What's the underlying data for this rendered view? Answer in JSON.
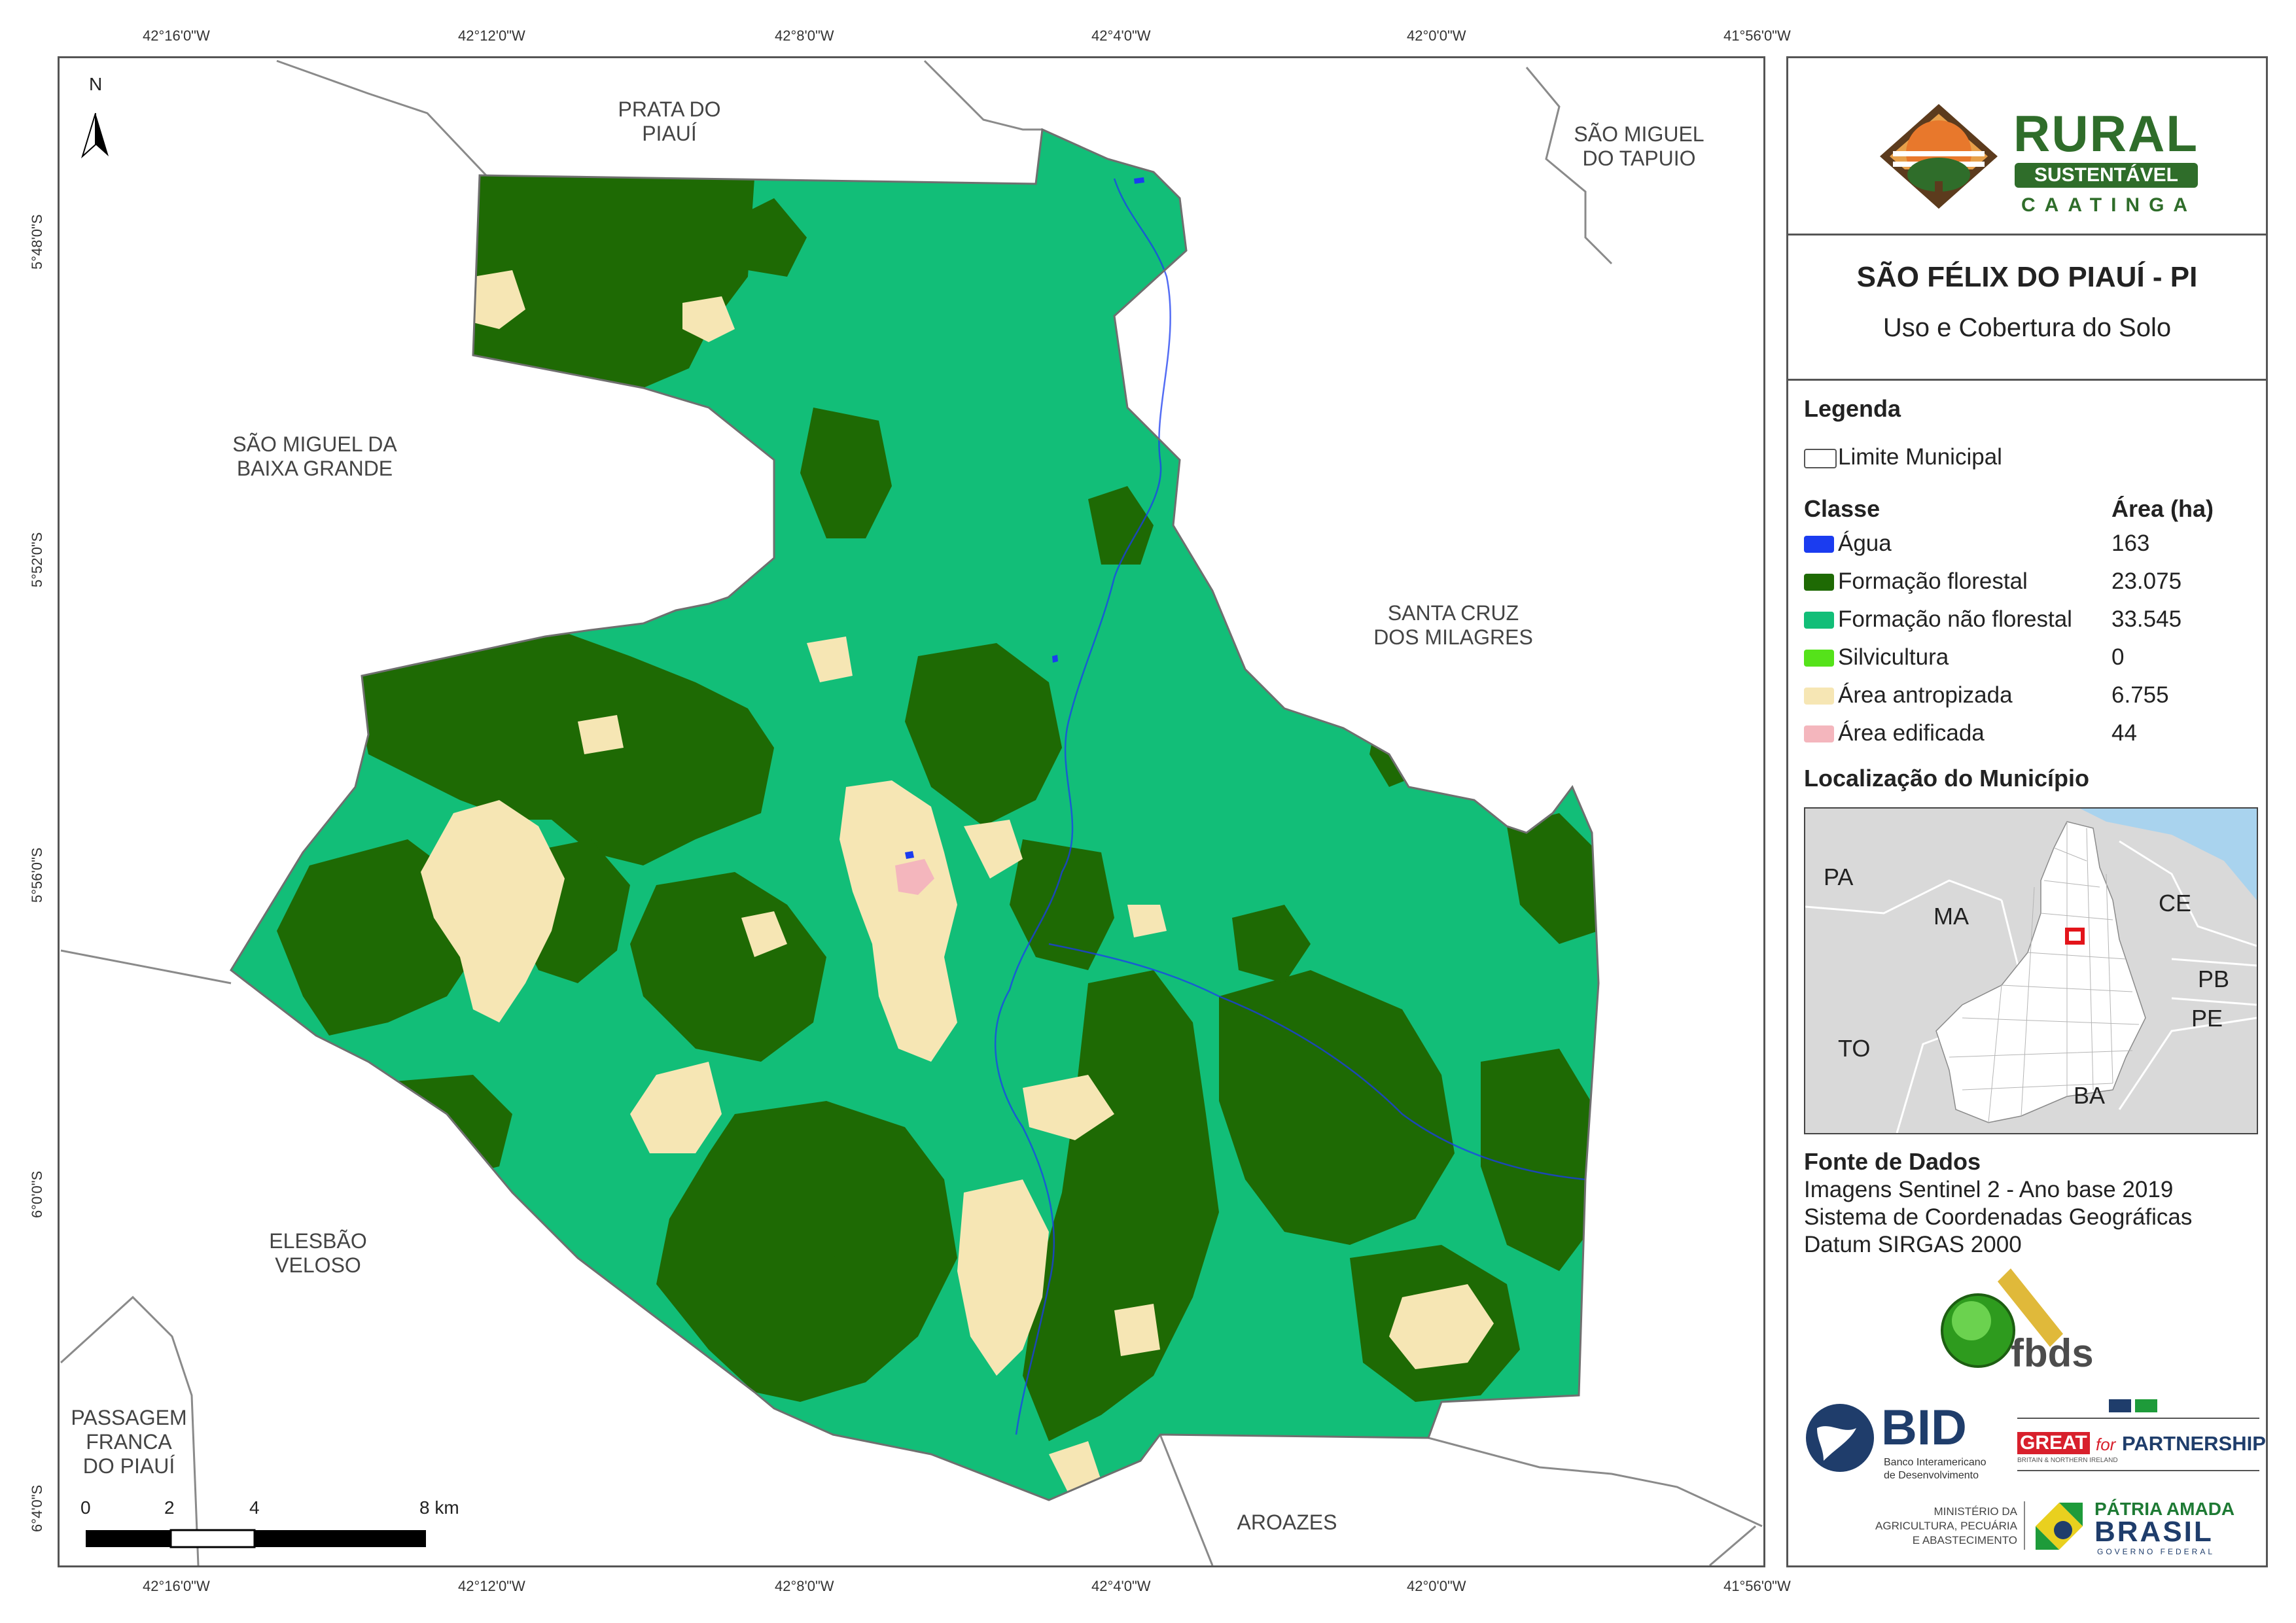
{
  "map": {
    "coords_top": [
      "42°16'0\"W",
      "42°12'0\"W",
      "42°8'0\"W",
      "42°4'0\"W",
      "42°0'0\"W",
      "41°56'0\"W"
    ],
    "coords_bottom": [
      "42°16'0\"W",
      "42°12'0\"W",
      "42°8'0\"W",
      "42°4'0\"W",
      "42°0'0\"W",
      "41°56'0\"W"
    ],
    "coords_left": [
      "5°48'0\"S",
      "5°52'0\"S",
      "5°56'0\"S",
      "6°0'0\"S",
      "6°4'0\"S"
    ],
    "north_label": "N",
    "places": {
      "prata": [
        "PRATA DO",
        "PIAUÍ"
      ],
      "sao_miguel_tapuio": [
        "SÃO MIGUEL",
        "DO TAPUIO"
      ],
      "sao_miguel_baixa": [
        "SÃO MIGUEL DA",
        "BAIXA GRANDE"
      ],
      "santa_cruz": [
        "SANTA CRUZ",
        "DOS MILAGRES"
      ],
      "elesbao": [
        "ELESBÃO",
        "VELOSO"
      ],
      "passagem": [
        "PASSAGEM",
        "FRANCA",
        "DO PIAUÍ"
      ],
      "aroazes": [
        "AROAZES"
      ]
    },
    "scale_labels": [
      "0",
      "2",
      "4",
      "8 km"
    ],
    "colors": {
      "agua": "#1b3cf0",
      "floresta": "#1e6a04",
      "nao_florestal": "#12be78",
      "silvicultura": "#55e21a",
      "antropizada": "#f6e6b4",
      "edificada": "#f4b6bd",
      "boundary": "#8a8a8a"
    }
  },
  "panel": {
    "logo": {
      "rural": "RURAL",
      "sustentavel": "SUSTENTÁVEL",
      "caatinga": "CAATINGA"
    },
    "title": "SÃO FÉLIX DO PIAUÍ - PI",
    "subtitle": "Uso e Cobertura do Solo",
    "legend": {
      "heading": "Legenda",
      "limit_label": "Limite Municipal",
      "class_header": "Classe",
      "area_header": "Área (ha)",
      "items": [
        {
          "label": "Água",
          "area": "163",
          "color": "#1b3cf0"
        },
        {
          "label": "Formação florestal",
          "area": "23.075",
          "color": "#1e6a04"
        },
        {
          "label": "Formação não florestal",
          "area": "33.545",
          "color": "#12be78"
        },
        {
          "label": "Silvicultura",
          "area": "0",
          "color": "#55e21a"
        },
        {
          "label": "Área antropizada",
          "area": "6.755",
          "color": "#f6e6b4"
        },
        {
          "label": "Área edificada",
          "area": "44",
          "color": "#f4b6bd"
        }
      ]
    },
    "location": {
      "heading": "Localização do Município",
      "labels": {
        "pa": "PA",
        "ma": "MA",
        "ce": "CE",
        "pb": "PB",
        "pe": "PE",
        "to": "TO",
        "ba": "BA"
      }
    },
    "source": {
      "heading": "Fonte de Dados",
      "lines": [
        "Imagens Sentinel 2 - Ano base 2019",
        "Sistema de Coordenadas Geográficas",
        "Datum SIRGAS 2000"
      ]
    },
    "logos": {
      "fbds": "fbds",
      "bid": "BID",
      "bid_sub1": "Banco Interamericano",
      "bid_sub2": "de Desenvolvimento",
      "great": "GREAT",
      "great_for": "for",
      "partnership": "PARTNERSHIP",
      "great_sub": "BRITAIN & NORTHERN IRELAND",
      "min1": "MINISTÉRIO DA",
      "min2": "AGRICULTURA, PECUÁRIA",
      "min3": "E ABASTECIMENTO",
      "patria": "PÁTRIA AMADA",
      "brasil": "BRASIL",
      "governo": "GOVERNO FEDERAL"
    }
  }
}
